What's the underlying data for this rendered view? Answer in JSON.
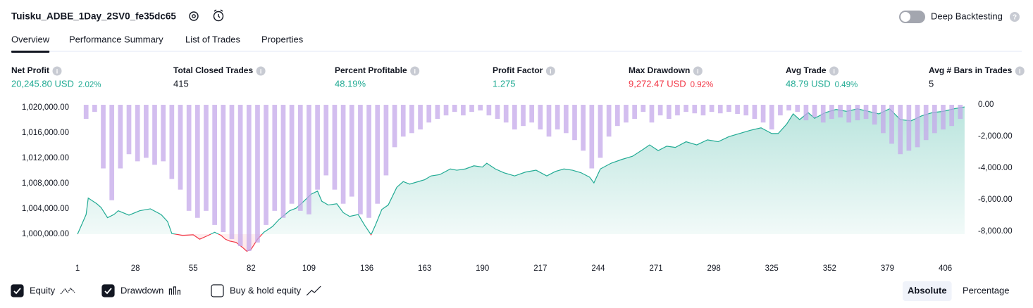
{
  "header": {
    "strategy_name": "Tuisku_ADBE_1Day_2SV0_fe35dc65",
    "deep_backtesting": "Deep Backtesting",
    "deep_backtesting_enabled": false
  },
  "tabs": {
    "items": [
      "Overview",
      "Performance Summary",
      "List of Trades",
      "Properties"
    ],
    "active": 0
  },
  "metrics": [
    {
      "label": "Net Profit",
      "value": "20,245.80 USD",
      "percent": "2.02%",
      "tone": "positive"
    },
    {
      "label": "Total Closed Trades",
      "value": "415",
      "tone": "neutral"
    },
    {
      "label": "Percent Profitable",
      "value": "48.19%",
      "tone": "positive"
    },
    {
      "label": "Profit Factor",
      "value": "1.275",
      "tone": "positive"
    },
    {
      "label": "Max Drawdown",
      "value": "9,272.47 USD",
      "percent": "0.92%",
      "tone": "negative"
    },
    {
      "label": "Avg Trade",
      "value": "48.79 USD",
      "percent": "0.49%",
      "tone": "positive"
    },
    {
      "label": "Avg # Bars in Trades",
      "value": "5",
      "tone": "neutral"
    }
  ],
  "chart_data": {
    "type": "line",
    "grid": false,
    "xlim": [
      0,
      417
    ],
    "xticks": [
      1,
      28,
      55,
      82,
      109,
      136,
      163,
      190,
      217,
      244,
      271,
      298,
      325,
      352,
      379,
      406
    ],
    "ylim": [
      996550,
      1020550
    ],
    "yticks": [
      {
        "value": 1000000,
        "label": "1,000,000.00"
      },
      {
        "value": 1004000,
        "label": "1,004,000.00"
      },
      {
        "value": 1008000,
        "label": "1,008,000.00"
      },
      {
        "value": 1012000,
        "label": "1,012,000.00"
      },
      {
        "value": 1016000,
        "label": "1,016,000.00"
      },
      {
        "value": 1020000,
        "label": "1,020,000.00"
      }
    ],
    "baseline": 1000000,
    "y2lim": [
      -9550,
      45
    ],
    "y2ticks": [
      {
        "value": 0,
        "label": "0.00"
      },
      {
        "value": -2000,
        "label": "-2,000.00"
      },
      {
        "value": -4000,
        "label": "-4,000.00"
      },
      {
        "value": -6000,
        "label": "-6,000.00"
      },
      {
        "value": -8000,
        "label": "-8,000.00"
      }
    ],
    "series": [
      {
        "name": "Equity",
        "visible": true,
        "color": "#22ab94",
        "negative_color": "#f23645",
        "x": [
          1,
          5,
          6,
          10,
          12,
          15,
          18,
          20,
          25,
          30,
          35,
          40,
          43,
          45,
          50,
          55,
          58,
          62,
          65,
          68,
          70,
          72,
          75,
          78,
          80,
          82,
          85,
          88,
          92,
          95,
          100,
          103,
          106,
          110,
          113,
          115,
          118,
          122,
          125,
          128,
          132,
          135,
          138,
          140,
          143,
          146,
          150,
          153,
          156,
          160,
          163,
          166,
          170,
          175,
          178,
          182,
          186,
          190,
          192,
          196,
          200,
          205,
          210,
          215,
          220,
          224,
          228,
          232,
          236,
          240,
          242,
          245,
          250,
          255,
          260,
          265,
          268,
          272,
          276,
          280,
          285,
          290,
          295,
          300,
          305,
          310,
          315,
          320,
          325,
          328,
          332,
          335,
          338,
          342,
          345,
          350,
          355,
          360,
          365,
          370,
          375,
          380,
          385,
          390,
          395,
          400,
          405,
          410,
          415
        ],
        "values": [
          1000000,
          1003100,
          1005700,
          1004800,
          1004200,
          1002600,
          1003100,
          1003700,
          1003000,
          1003700,
          1004000,
          1003100,
          1002000,
          1000100,
          999800,
          999900,
          999200,
          999800,
          1000300,
          999800,
          999200,
          998900,
          998700,
          997900,
          997300,
          997600,
          999200,
          1000300,
          1001200,
          1002300,
          1003700,
          1004100,
          1005000,
          1006300,
          1006800,
          1005200,
          1004600,
          1004800,
          1003400,
          1002800,
          1003100,
          1001400,
          999900,
          1001400,
          1003900,
          1004600,
          1007400,
          1008300,
          1007900,
          1008300,
          1008600,
          1009200,
          1009400,
          1010300,
          1010100,
          1010300,
          1010800,
          1010600,
          1011200,
          1010300,
          1009700,
          1009200,
          1009800,
          1010100,
          1009200,
          1009900,
          1010300,
          1010100,
          1009700,
          1009000,
          1008100,
          1010300,
          1011200,
          1011800,
          1012300,
          1013400,
          1014100,
          1013200,
          1013900,
          1013700,
          1014600,
          1014100,
          1014900,
          1014600,
          1015400,
          1015900,
          1016400,
          1016800,
          1015900,
          1015900,
          1017400,
          1019000,
          1018100,
          1019200,
          1018300,
          1019200,
          1019700,
          1019400,
          1019800,
          1019400,
          1019000,
          1019800,
          1018100,
          1017900,
          1018700,
          1019200,
          1019400,
          1019800,
          1020100
        ]
      },
      {
        "name": "Drawdown",
        "visible": true,
        "type": "bar",
        "axis": "y2",
        "color": "#c4a8ea",
        "x": [
          1,
          5,
          9,
          13,
          17,
          21,
          25,
          29,
          33,
          37,
          41,
          45,
          49,
          53,
          57,
          61,
          65,
          69,
          73,
          77,
          81,
          85,
          89,
          93,
          97,
          101,
          105,
          109,
          113,
          117,
          121,
          125,
          129,
          133,
          137,
          141,
          145,
          149,
          153,
          157,
          161,
          165,
          169,
          173,
          177,
          181,
          185,
          189,
          193,
          197,
          201,
          205,
          209,
          213,
          217,
          221,
          225,
          229,
          233,
          237,
          241,
          245,
          249,
          253,
          257,
          261,
          265,
          269,
          273,
          277,
          281,
          285,
          289,
          293,
          297,
          301,
          305,
          309,
          313,
          317,
          321,
          325,
          329,
          333,
          337,
          341,
          345,
          349,
          353,
          357,
          361,
          365,
          369,
          373,
          377,
          381,
          385,
          389,
          393,
          397,
          401,
          405,
          409,
          413
        ],
        "values": [
          0,
          -890,
          -450,
          -4020,
          -6030,
          -4020,
          -3120,
          -3570,
          -3350,
          -3790,
          -3570,
          -4690,
          -5360,
          -6700,
          -7140,
          -6700,
          -7590,
          -8040,
          -8480,
          -8930,
          -9240,
          -8700,
          -7590,
          -6700,
          -7140,
          -6250,
          -6700,
          -6920,
          -5360,
          -4460,
          -5360,
          -6250,
          -5800,
          -6920,
          -7140,
          -6250,
          -4460,
          -2680,
          -2010,
          -1790,
          -1560,
          -1120,
          -890,
          -670,
          -450,
          -670,
          -450,
          -360,
          -670,
          -890,
          -1120,
          -1560,
          -1340,
          -1120,
          -1560,
          -2010,
          -1560,
          -1790,
          -2230,
          -2900,
          -4020,
          -3350,
          -2010,
          -1340,
          -1120,
          -890,
          -450,
          -1120,
          -670,
          -890,
          -670,
          -450,
          -540,
          -670,
          -450,
          -540,
          -450,
          -580,
          -670,
          -890,
          -1120,
          -1560,
          -670,
          -360,
          -450,
          -980,
          -800,
          -1120,
          -890,
          -800,
          -1120,
          -980,
          -890,
          -1250,
          -1790,
          -2460,
          -3120,
          -2900,
          -2680,
          -2230,
          -1790,
          -1560,
          -1340,
          -890
        ]
      },
      {
        "name": "Buy & hold equity",
        "visible": false
      }
    ]
  },
  "scale_toggle": {
    "items": [
      "Absolute",
      "Percentage"
    ],
    "active": 0
  }
}
